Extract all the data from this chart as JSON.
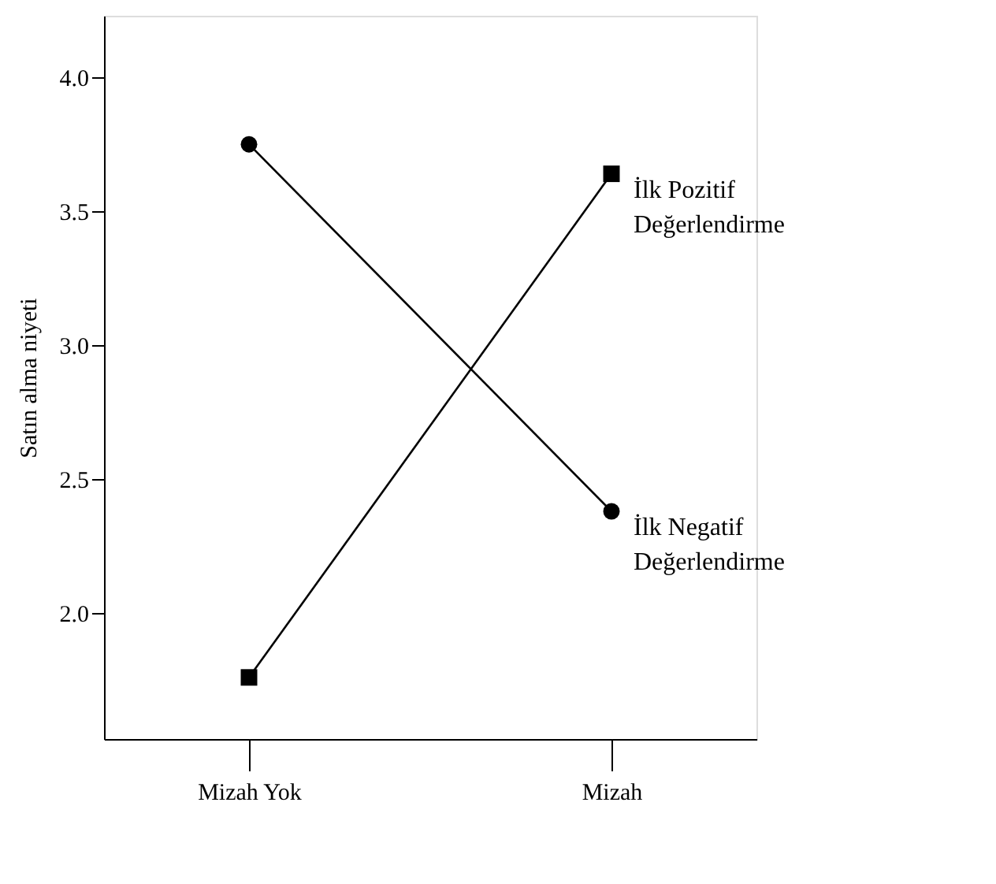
{
  "chart_data": {
    "type": "line",
    "ylabel": "Satın alma niyeti",
    "categories": [
      "Mizah Yok",
      "Mizah"
    ],
    "series": [
      {
        "name": "İlk Negatif Değerlendirme",
        "color": "#000000",
        "marker": "circle",
        "values": [
          3.75,
          2.38
        ]
      },
      {
        "name": "İlk Pozitif Değerlendirme",
        "color": "#000000",
        "marker": "square",
        "values": [
          1.76,
          3.64
        ]
      }
    ],
    "ylim": [
      1.53,
      4.23
    ],
    "yticks": [
      {
        "value": 2,
        "label": "2.0"
      },
      2.5,
      {
        "value": 3,
        "label": "3.0"
      },
      3.5,
      {
        "value": 4,
        "label": "4.0"
      }
    ],
    "grid": false,
    "legend": false,
    "line_style": "solid"
  }
}
